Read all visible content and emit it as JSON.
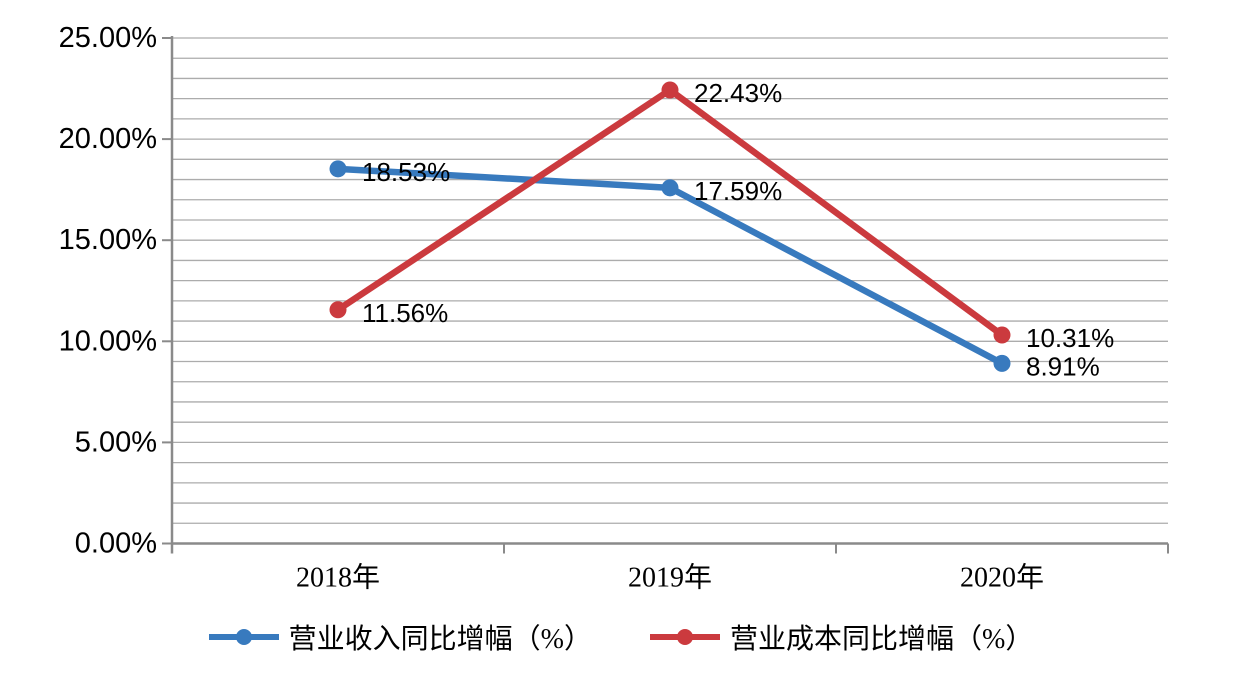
{
  "chart_data": {
    "type": "line",
    "title": "",
    "categories": [
      "2018年",
      "2019年",
      "2020年"
    ],
    "series": [
      {
        "name": "营业收入同比增幅（%）",
        "color": "#387ABE",
        "values": [
          18.53,
          17.59,
          8.91
        ],
        "data_labels": [
          "18.53%",
          "17.59%",
          "8.91%"
        ]
      },
      {
        "name": "营业成本同比增幅（%）",
        "color": "#CB3A3E",
        "values": [
          11.56,
          22.43,
          10.31
        ],
        "data_labels": [
          "11.56%",
          "22.43%",
          "10.31%"
        ]
      }
    ],
    "y_axis": {
      "min": 0,
      "max": 25,
      "major_step": 5,
      "minor_step": 1,
      "tick_labels": [
        "0.00%",
        "5.00%",
        "10.00%",
        "15.00%",
        "20.00%",
        "25.00%"
      ]
    },
    "grid": {
      "horizontal_minor": true,
      "vertical": false
    },
    "legend": {
      "position": "bottom"
    }
  },
  "style": {
    "background": "#FFFFFF",
    "gridline_color": "#ACACAC",
    "axis_color": "#8A8A8A",
    "text_color": "#000000"
  }
}
